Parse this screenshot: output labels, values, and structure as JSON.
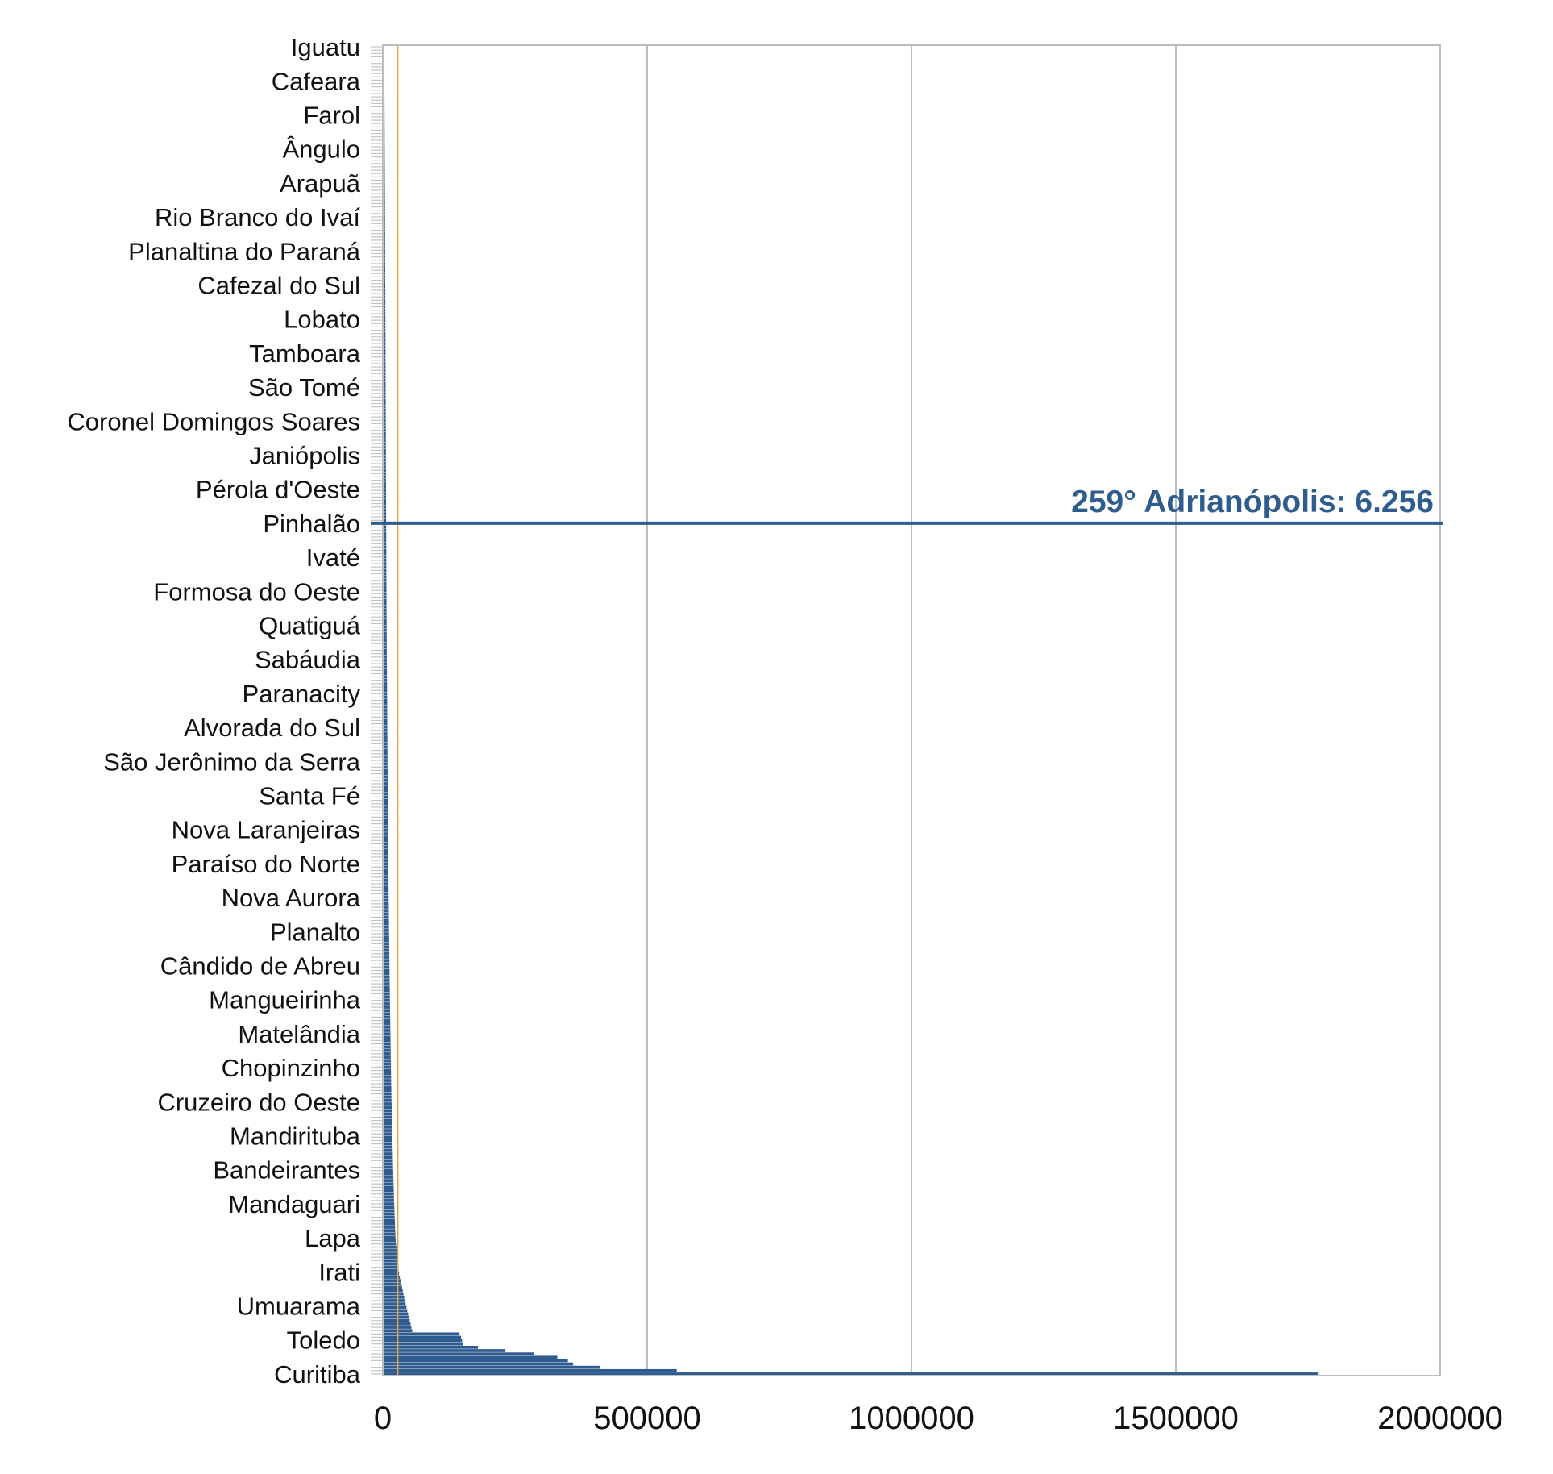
{
  "chart_data": {
    "type": "bar",
    "orientation": "horizontal",
    "xlim": [
      0,
      2000000
    ],
    "x_ticks": [
      "0",
      "500000",
      "1000000",
      "1500000",
      "2000000"
    ],
    "grid": "vertical",
    "legend": "none",
    "bar_color": "#2f5c8f",
    "reference_line_color": "#e8a33d",
    "reference_line_value": 28000,
    "highlight": {
      "label": "259° Adrianópolis: 6.256",
      "category": "Pinhalão",
      "color": "#2f5c8f"
    },
    "bar_count": 399,
    "categories": [
      "Iguatu",
      "Cafeara",
      "Farol",
      "Ângulo",
      "Arapuã",
      "Rio Branco do Ivaí",
      "Planaltina do Paraná",
      "Cafezal do Sul",
      "Lobato",
      "Tamboara",
      "São Tomé",
      "Coronel Domingos Soares",
      "Janiópolis",
      "Pérola d'Oeste",
      "Pinhalão",
      "Ivaté",
      "Formosa do Oeste",
      "Quatiguá",
      "Sabáudia",
      "Paranacity",
      "Alvorada do Sul",
      "São Jerônimo da Serra",
      "Santa Fé",
      "Nova Laranjeiras",
      "Paraíso do Norte",
      "Nova Aurora",
      "Planalto",
      "Cândido de Abreu",
      "Mangueirinha",
      "Matelândia",
      "Chopinzinho",
      "Cruzeiro do Oeste",
      "Mandirituba",
      "Bandeirantes",
      "Mandaguari",
      "Lapa",
      "Irati",
      "Umuarama",
      "Toledo",
      "Curitiba"
    ],
    "values": [
      2300,
      2900,
      3300,
      3600,
      3900,
      4200,
      4400,
      4600,
      4900,
      5100,
      5300,
      5600,
      5800,
      6000,
      6300,
      6600,
      6900,
      7200,
      7600,
      8100,
      8500,
      8900,
      9300,
      9800,
      10400,
      11100,
      11800,
      12600,
      13400,
      14400,
      15300,
      16500,
      18000,
      19500,
      21500,
      24000,
      30000,
      44000,
      60000,
      1770000
    ],
    "top_values": [
      1770000,
      556000,
      410000,
      360000,
      350000,
      330000,
      285000,
      232000,
      180000,
      152000,
      150000,
      148000,
      145000
    ]
  }
}
